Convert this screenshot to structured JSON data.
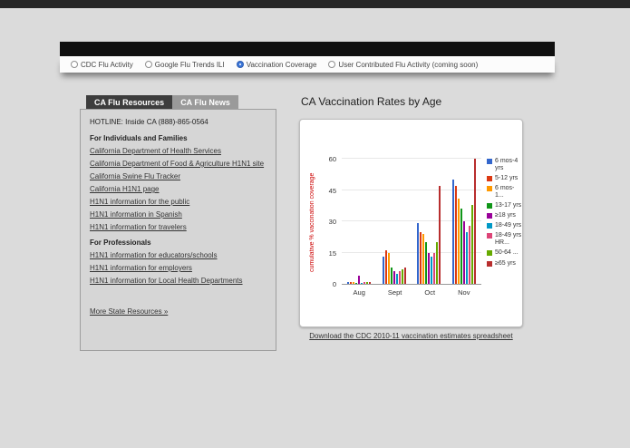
{
  "colors": {
    "accent_blue": "#3b76d8",
    "link": "#333333",
    "ylabel_red": "#cc0000",
    "active_tab_bg": "#3d3d3d",
    "inactive_tab_bg": "#9a9a9a"
  },
  "view_selector": {
    "options": [
      {
        "label": "CDC Flu Activity",
        "selected": false
      },
      {
        "label": "Google Flu Trends ILI",
        "selected": false
      },
      {
        "label": "Vaccination Coverage",
        "selected": true
      },
      {
        "label": "User Contributed Flu Activity (coming soon)",
        "selected": false
      }
    ]
  },
  "sidebar": {
    "tabs": [
      {
        "label": "CA Flu Resources",
        "active": true
      },
      {
        "label": "CA Flu News",
        "active": false
      }
    ],
    "hotline": "HOTLINE: Inside CA (888)-865-0564",
    "sections": [
      {
        "heading": "For Individuals and Families",
        "links": [
          "California Department of Health Services",
          "California Department of Food & Agriculture H1N1 site",
          "California Swine Flu Tracker",
          "California H1N1 page",
          "H1N1 information for the public",
          "H1N1 information in Spanish",
          "H1N1 information for travelers"
        ]
      },
      {
        "heading": "For Professionals",
        "links": [
          "H1N1 information for educators/schools",
          "H1N1 information for employers",
          "H1N1 information for Local Health Departments"
        ]
      }
    ],
    "more_link": "More State Resources »"
  },
  "main": {
    "title": "CA Vaccination Rates by Age",
    "download_link": "Download the CDC 2010-11 vaccination estimates spreadsheet"
  },
  "chart_data": {
    "type": "bar",
    "title": "CA Vaccination Rates by Age",
    "categories": [
      "Aug",
      "Sept",
      "Oct",
      "Nov"
    ],
    "series": [
      {
        "name": "6 mos-4 yrs",
        "color": "#3366CC",
        "values": [
          1,
          13,
          29,
          50
        ]
      },
      {
        "name": "5-12 yrs",
        "color": "#DC3912",
        "values": [
          1,
          16,
          25,
          47
        ]
      },
      {
        "name": "6 mos-1...",
        "color": "#FF9900",
        "values": [
          1,
          15,
          24,
          41
        ]
      },
      {
        "name": "13-17 yrs",
        "color": "#109618",
        "values": [
          0.5,
          8,
          20,
          36
        ]
      },
      {
        "name": "≥18 yrs",
        "color": "#990099",
        "values": [
          4,
          6,
          15,
          30
        ]
      },
      {
        "name": "18-49 yrs",
        "color": "#0099C6",
        "values": [
          0.5,
          5,
          13,
          25
        ]
      },
      {
        "name": "18-49 yrs HR...",
        "color": "#DD4477",
        "values": [
          1,
          6,
          15,
          28
        ]
      },
      {
        "name": "50-64 ...",
        "color": "#66AA00",
        "values": [
          1,
          7,
          20,
          38
        ]
      },
      {
        "name": "≥65 yrs",
        "color": "#B82E2E",
        "values": [
          1,
          8,
          47,
          60
        ]
      }
    ],
    "xlabel": "",
    "ylabel": "cumulative % vaccination coverage",
    "yticks": [
      0,
      15,
      30,
      45,
      60
    ],
    "ylim": [
      0,
      60
    ],
    "legend_position": "right",
    "grid": true
  }
}
